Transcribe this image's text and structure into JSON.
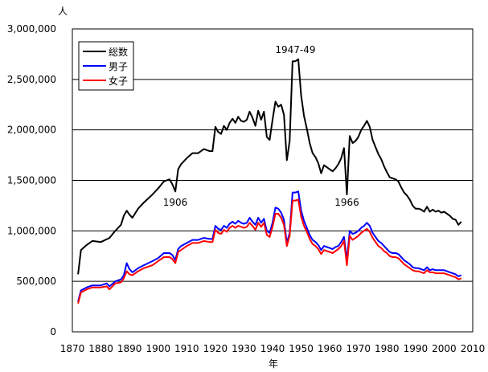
{
  "chart_data": {
    "type": "line",
    "ylabel": "人",
    "xlabel": "年",
    "xlim": [
      1870,
      2010
    ],
    "ylim": [
      0,
      3000000
    ],
    "x_ticks": [
      1870,
      1880,
      1890,
      1900,
      1910,
      1920,
      1930,
      1940,
      1950,
      1960,
      1970,
      1980,
      1990,
      2000,
      2010
    ],
    "y_ticks": [
      0,
      500000,
      1000000,
      1500000,
      2000000,
      2500000,
      3000000
    ],
    "y_tick_labels": [
      "0",
      "500,000",
      "1,000,000",
      "1,500,000",
      "2,000,000",
      "2,500,000",
      "3,000,000"
    ],
    "grid": "horizontal",
    "legend_position": "top-left",
    "annotations": [
      {
        "text": "1947-49",
        "x": 1948,
        "y": 2760000
      },
      {
        "text": "1906",
        "x": 1906,
        "y": 1250000
      },
      {
        "text": "1966",
        "x": 1966,
        "y": 1250000
      }
    ],
    "series": [
      {
        "name": "総数",
        "color": "#000000",
        "x": [
          1872,
          1873,
          1875,
          1877,
          1880,
          1883,
          1885,
          1887,
          1888,
          1889,
          1890,
          1891,
          1893,
          1895,
          1898,
          1900,
          1902,
          1904,
          1905,
          1906,
          1907,
          1908,
          1910,
          1912,
          1914,
          1916,
          1918,
          1919,
          1920,
          1921,
          1922,
          1923,
          1924,
          1925,
          1926,
          1927,
          1928,
          1929,
          1930,
          1931,
          1932,
          1933,
          1934,
          1935,
          1936,
          1937,
          1938,
          1939,
          1940,
          1941,
          1942,
          1943,
          1944,
          1945,
          1946,
          1947,
          1948,
          1949,
          1950,
          1951,
          1952,
          1953,
          1954,
          1955,
          1956,
          1957,
          1958,
          1959,
          1960,
          1961,
          1962,
          1963,
          1964,
          1965,
          1966,
          1967,
          1968,
          1969,
          1970,
          1971,
          1972,
          1973,
          1974,
          1975,
          1976,
          1977,
          1978,
          1979,
          1980,
          1981,
          1982,
          1983,
          1984,
          1985,
          1986,
          1987,
          1988,
          1989,
          1990,
          1991,
          1992,
          1993,
          1994,
          1995,
          1996,
          1997,
          1998,
          1999,
          2000,
          2001,
          2002,
          2003,
          2004,
          2005,
          2006
        ],
        "values": [
          570000,
          810000,
          860000,
          900000,
          890000,
          930000,
          1000000,
          1060000,
          1150000,
          1200000,
          1160000,
          1130000,
          1220000,
          1280000,
          1360000,
          1420000,
          1490000,
          1510000,
          1460000,
          1390000,
          1610000,
          1660000,
          1720000,
          1770000,
          1770000,
          1810000,
          1790000,
          1790000,
          2030000,
          1980000,
          1960000,
          2040000,
          2000000,
          2070000,
          2110000,
          2070000,
          2130000,
          2090000,
          2080000,
          2100000,
          2180000,
          2120000,
          2040000,
          2190000,
          2100000,
          2180000,
          1930000,
          1900000,
          2100000,
          2280000,
          2230000,
          2250000,
          2150000,
          1700000,
          1890000,
          2680000,
          2680000,
          2700000,
          2340000,
          2140000,
          2010000,
          1870000,
          1770000,
          1730000,
          1670000,
          1570000,
          1650000,
          1630000,
          1610000,
          1590000,
          1620000,
          1660000,
          1720000,
          1820000,
          1360000,
          1940000,
          1870000,
          1890000,
          1930000,
          2000000,
          2040000,
          2090000,
          2030000,
          1900000,
          1830000,
          1760000,
          1710000,
          1640000,
          1580000,
          1530000,
          1520000,
          1510000,
          1490000,
          1430000,
          1380000,
          1350000,
          1310000,
          1250000,
          1220000,
          1220000,
          1210000,
          1190000,
          1240000,
          1190000,
          1210000,
          1190000,
          1200000,
          1180000,
          1190000,
          1170000,
          1150000,
          1120000,
          1110000,
          1060000,
          1090000
        ]
      },
      {
        "name": "男子",
        "color": "#0000ff",
        "x": [
          1872,
          1873,
          1875,
          1877,
          1880,
          1882,
          1883,
          1885,
          1887,
          1888,
          1889,
          1890,
          1891,
          1893,
          1895,
          1898,
          1900,
          1902,
          1904,
          1905,
          1906,
          1907,
          1908,
          1910,
          1912,
          1914,
          1916,
          1918,
          1919,
          1920,
          1921,
          1922,
          1923,
          1924,
          1925,
          1926,
          1927,
          1928,
          1929,
          1930,
          1931,
          1932,
          1933,
          1934,
          1935,
          1936,
          1937,
          1938,
          1939,
          1940,
          1941,
          1942,
          1943,
          1944,
          1945,
          1946,
          1947,
          1948,
          1949,
          1950,
          1951,
          1952,
          1953,
          1954,
          1955,
          1956,
          1957,
          1958,
          1959,
          1960,
          1961,
          1962,
          1963,
          1964,
          1965,
          1966,
          1967,
          1968,
          1969,
          1970,
          1971,
          1972,
          1973,
          1974,
          1975,
          1976,
          1977,
          1978,
          1979,
          1980,
          1981,
          1982,
          1983,
          1984,
          1985,
          1986,
          1987,
          1988,
          1989,
          1990,
          1991,
          1992,
          1993,
          1994,
          1995,
          1996,
          1997,
          1998,
          1999,
          2000,
          2001,
          2002,
          2003,
          2004,
          2005,
          2006
        ],
        "values": [
          300000,
          410000,
          440000,
          460000,
          460000,
          480000,
          450000,
          500000,
          520000,
          560000,
          680000,
          620000,
          590000,
          630000,
          660000,
          700000,
          730000,
          780000,
          780000,
          760000,
          710000,
          820000,
          850000,
          880000,
          910000,
          910000,
          930000,
          920000,
          920000,
          1050000,
          1020000,
          1010000,
          1050000,
          1030000,
          1070000,
          1090000,
          1070000,
          1100000,
          1080000,
          1070000,
          1080000,
          1130000,
          1090000,
          1060000,
          1130000,
          1080000,
          1120000,
          1000000,
          980000,
          1080000,
          1230000,
          1220000,
          1180000,
          1110000,
          880000,
          980000,
          1380000,
          1380000,
          1390000,
          1200000,
          1100000,
          1030000,
          960000,
          910000,
          890000,
          860000,
          810000,
          850000,
          840000,
          830000,
          820000,
          840000,
          850000,
          890000,
          940000,
          710000,
          1000000,
          970000,
          980000,
          1000000,
          1030000,
          1050000,
          1080000,
          1050000,
          980000,
          940000,
          900000,
          880000,
          850000,
          820000,
          790000,
          780000,
          780000,
          770000,
          740000,
          710000,
          690000,
          670000,
          640000,
          630000,
          630000,
          620000,
          610000,
          640000,
          610000,
          620000,
          610000,
          610000,
          610000,
          610000,
          600000,
          590000,
          580000,
          570000,
          550000,
          560000
        ]
      },
      {
        "name": "女子",
        "color": "#ff0000",
        "x": [
          1872,
          1873,
          1875,
          1877,
          1880,
          1882,
          1883,
          1885,
          1887,
          1888,
          1889,
          1890,
          1891,
          1893,
          1895,
          1898,
          1900,
          1902,
          1904,
          1905,
          1906,
          1907,
          1908,
          1910,
          1912,
          1914,
          1916,
          1918,
          1919,
          1920,
          1921,
          1922,
          1923,
          1924,
          1925,
          1926,
          1927,
          1928,
          1929,
          1930,
          1931,
          1932,
          1933,
          1934,
          1935,
          1936,
          1937,
          1938,
          1939,
          1940,
          1941,
          1942,
          1943,
          1944,
          1945,
          1946,
          1947,
          1948,
          1949,
          1950,
          1951,
          1952,
          1953,
          1954,
          1955,
          1956,
          1957,
          1958,
          1959,
          1960,
          1961,
          1962,
          1963,
          1964,
          1965,
          1966,
          1967,
          1968,
          1969,
          1970,
          1971,
          1972,
          1973,
          1974,
          1975,
          1976,
          1977,
          1978,
          1979,
          1980,
          1981,
          1982,
          1983,
          1984,
          1985,
          1986,
          1987,
          1988,
          1989,
          1990,
          1991,
          1992,
          1993,
          1994,
          1995,
          1996,
          1997,
          1998,
          1999,
          2000,
          2001,
          2002,
          2003,
          2004,
          2005,
          2006
        ],
        "values": [
          280000,
          390000,
          420000,
          440000,
          440000,
          450000,
          420000,
          480000,
          490000,
          530000,
          600000,
          570000,
          560000,
          600000,
          630000,
          660000,
          700000,
          740000,
          740000,
          720000,
          680000,
          790000,
          810000,
          850000,
          880000,
          880000,
          900000,
          890000,
          890000,
          1010000,
          980000,
          970000,
          1010000,
          990000,
          1030000,
          1050000,
          1030000,
          1050000,
          1040000,
          1030000,
          1040000,
          1080000,
          1050000,
          1010000,
          1080000,
          1040000,
          1080000,
          960000,
          940000,
          1040000,
          1170000,
          1170000,
          1130000,
          1060000,
          850000,
          950000,
          1300000,
          1300000,
          1310000,
          1140000,
          1050000,
          990000,
          920000,
          870000,
          850000,
          820000,
          770000,
          810000,
          800000,
          790000,
          780000,
          800000,
          820000,
          850000,
          900000,
          660000,
          950000,
          910000,
          930000,
          950000,
          980000,
          1000000,
          1020000,
          990000,
          930000,
          890000,
          850000,
          830000,
          800000,
          780000,
          750000,
          740000,
          740000,
          730000,
          700000,
          670000,
          650000,
          630000,
          610000,
          600000,
          600000,
          590000,
          580000,
          610000,
          590000,
          590000,
          580000,
          580000,
          580000,
          580000,
          570000,
          560000,
          550000,
          540000,
          520000,
          530000
        ]
      }
    ]
  }
}
